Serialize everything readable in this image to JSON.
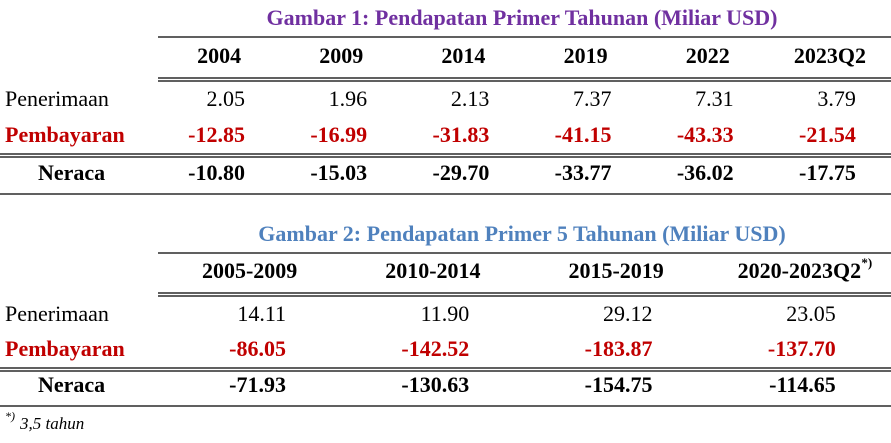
{
  "table1": {
    "title": "Gambar 1: Pendapatan Primer Tahunan (Miliar USD)",
    "columns": [
      "2004",
      "2009",
      "2014",
      "2019",
      "2022",
      "2023Q2"
    ],
    "rows": [
      {
        "label": "Penerimaan",
        "values": [
          "2.05",
          "1.96",
          "2.13",
          "7.37",
          "7.31",
          "3.79"
        ]
      },
      {
        "label": "Pembayaran",
        "values": [
          "-12.85",
          "-16.99",
          "-31.83",
          "-41.15",
          "-43.33",
          "-21.54"
        ]
      },
      {
        "label": "Neraca",
        "values": [
          "-10.80",
          "-15.03",
          "-29.70",
          "-33.77",
          "-36.02",
          "-17.75"
        ]
      }
    ]
  },
  "table2": {
    "title": "Gambar 2: Pendapatan Primer  5 Tahunan (Miliar USD)",
    "columns": [
      "2005-2009",
      "2010-2014",
      "2015-2019",
      "2020-2023Q2"
    ],
    "column_note": "*)",
    "rows": [
      {
        "label": "Penerimaan",
        "values": [
          "14.11",
          "11.90",
          "29.12",
          "23.05"
        ]
      },
      {
        "label": "Pembayaran",
        "values": [
          "-86.05",
          "-142.52",
          "-183.87",
          "-137.70"
        ]
      },
      {
        "label": "Neraca",
        "values": [
          "-71.93",
          "-130.63",
          "-154.75",
          "-114.65"
        ]
      }
    ]
  },
  "footnote": {
    "mark": "*)",
    "text": "3,5 tahun"
  }
}
